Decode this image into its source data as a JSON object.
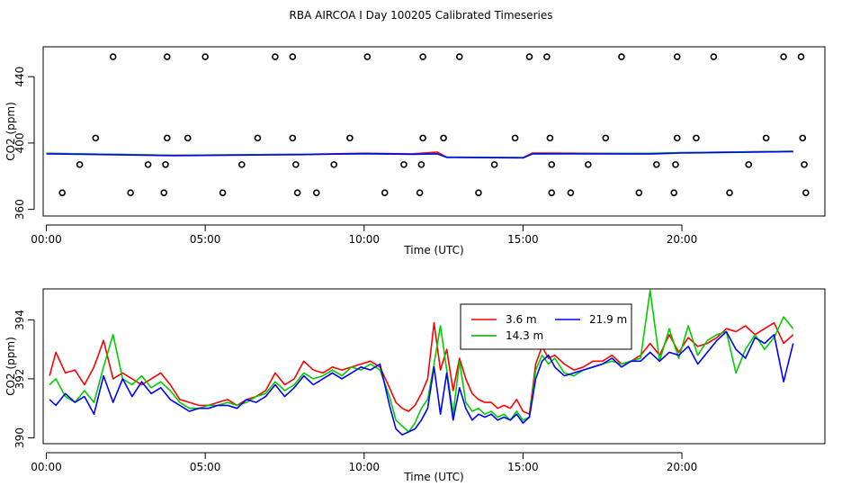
{
  "title": "RBA AIRCOA I  Day 100205  Calibrated Timeseries",
  "chart_data": [
    {
      "type": "scatter",
      "xlabel": "Time (UTC)",
      "ylabel": "CO2 (ppm)",
      "xlim": [
        -0.1,
        24.5
      ],
      "ylim": [
        356,
        458
      ],
      "x_ticks": [
        0,
        5,
        10,
        15,
        20
      ],
      "x_tick_labels": [
        "00:00",
        "05:00",
        "10:00",
        "15:00",
        "20:00"
      ],
      "y_ticks": [
        360,
        400,
        440
      ],
      "y_tick_labels": [
        "360",
        "400",
        "440"
      ],
      "grid": false,
      "series": [
        {
          "color": "#000000",
          "marker": "open-circle",
          "points": [
            [
              2.1,
              452
            ],
            [
              3.8,
              452
            ],
            [
              5.0,
              452
            ],
            [
              7.2,
              452
            ],
            [
              7.75,
              452
            ],
            [
              10.1,
              452
            ],
            [
              11.85,
              452
            ],
            [
              13.0,
              452
            ],
            [
              15.2,
              452
            ],
            [
              15.75,
              452
            ],
            [
              18.1,
              452
            ],
            [
              19.85,
              452
            ],
            [
              21.0,
              452
            ],
            [
              23.2,
              452
            ],
            [
              23.75,
              452
            ],
            [
              1.55,
              403
            ],
            [
              3.8,
              403
            ],
            [
              4.45,
              403
            ],
            [
              6.65,
              403
            ],
            [
              7.75,
              403
            ],
            [
              9.55,
              403
            ],
            [
              11.85,
              403
            ],
            [
              12.5,
              403
            ],
            [
              14.75,
              403
            ],
            [
              15.85,
              403
            ],
            [
              17.6,
              403
            ],
            [
              19.85,
              403
            ],
            [
              20.45,
              403
            ],
            [
              22.65,
              403
            ],
            [
              23.8,
              403
            ],
            [
              1.05,
              387
            ],
            [
              3.2,
              387
            ],
            [
              3.75,
              387
            ],
            [
              6.15,
              387
            ],
            [
              7.85,
              387
            ],
            [
              9.05,
              387
            ],
            [
              11.25,
              387
            ],
            [
              11.8,
              387
            ],
            [
              14.1,
              387
            ],
            [
              15.9,
              387
            ],
            [
              17.05,
              387
            ],
            [
              19.2,
              387
            ],
            [
              19.8,
              387
            ],
            [
              22.1,
              387
            ],
            [
              23.85,
              387
            ],
            [
              0.5,
              370
            ],
            [
              2.65,
              370
            ],
            [
              3.7,
              370
            ],
            [
              5.55,
              370
            ],
            [
              7.9,
              370
            ],
            [
              8.5,
              370
            ],
            [
              10.65,
              370
            ],
            [
              11.75,
              370
            ],
            [
              13.6,
              370
            ],
            [
              15.9,
              370
            ],
            [
              16.5,
              370
            ],
            [
              18.65,
              370
            ],
            [
              19.75,
              370
            ],
            [
              21.5,
              370
            ],
            [
              23.9,
              370
            ]
          ]
        },
        {
          "name": "3.6 m",
          "color": "#ff0000",
          "x": [
            0,
            4,
            8,
            10,
            11.5,
            12.3,
            12.6,
            15,
            15.3,
            19,
            20,
            23.5
          ],
          "y": [
            393.8,
            392.6,
            393.2,
            393.8,
            393.5,
            394.5,
            391.5,
            391.2,
            394,
            393.6,
            394.2,
            395
          ]
        },
        {
          "name": "14.3 m",
          "color": "#00cc00",
          "x": [
            0,
            4,
            8,
            10,
            11.5,
            12.3,
            12.6,
            15,
            15.3,
            19,
            20,
            23.5
          ],
          "y": [
            393.8,
            392.6,
            393.2,
            393.5,
            393.3,
            393.5,
            391.5,
            391.2,
            393.5,
            393.8,
            394.2,
            395
          ]
        },
        {
          "name": "21.9 m",
          "color": "#0000ff",
          "x": [
            0,
            4,
            8,
            10,
            11.5,
            12.3,
            12.6,
            15,
            15.3,
            19,
            20,
            23.5
          ],
          "y": [
            393.5,
            392.4,
            393.0,
            393.6,
            393.2,
            393.5,
            391.3,
            391.0,
            393.5,
            393.4,
            394.0,
            394.8
          ]
        }
      ]
    },
    {
      "type": "line",
      "xlabel": "Time (UTC)",
      "ylabel": "CO2 (ppm)",
      "xlim": [
        -0.1,
        24.5
      ],
      "ylim": [
        389.8,
        395.05
      ],
      "x_ticks": [
        0,
        5,
        10,
        15,
        20
      ],
      "x_tick_labels": [
        "00:00",
        "05:00",
        "10:00",
        "15:00",
        "20:00"
      ],
      "y_ticks": [
        390,
        392,
        394
      ],
      "y_tick_labels": [
        "390",
        "392",
        "394"
      ],
      "grid": false,
      "legend_placement": "top-center",
      "legend": [
        {
          "label": "3.6 m",
          "color": "#ff0000"
        },
        {
          "label": "21.9 m",
          "color": "#0000ff"
        },
        {
          "label": "14.3 m",
          "color": "#00aa00"
        }
      ],
      "series": [
        {
          "name": "3.6 m",
          "color": "#ff0000",
          "x": [
            0.1,
            0.3,
            0.6,
            0.9,
            1.2,
            1.5,
            1.8,
            2.1,
            2.4,
            2.7,
            3.0,
            3.3,
            3.6,
            3.9,
            4.2,
            4.5,
            4.8,
            5.1,
            5.4,
            5.7,
            6.0,
            6.3,
            6.6,
            6.9,
            7.2,
            7.5,
            7.8,
            8.1,
            8.4,
            8.7,
            9.0,
            9.3,
            9.6,
            9.9,
            10.2,
            10.5,
            10.8,
            11.0,
            11.2,
            11.4,
            11.6,
            11.8,
            12.0,
            12.2,
            12.4,
            12.6,
            12.8,
            13.0,
            13.2,
            13.4,
            13.6,
            13.8,
            14.0,
            14.2,
            14.4,
            14.6,
            14.8,
            15.0,
            15.2,
            15.4,
            15.6,
            15.8,
            16.0,
            16.3,
            16.6,
            16.9,
            17.2,
            17.5,
            17.8,
            18.1,
            18.4,
            18.7,
            19.0,
            19.3,
            19.6,
            19.9,
            20.2,
            20.5,
            20.8,
            21.1,
            21.4,
            21.7,
            22.0,
            22.3,
            22.6,
            22.9,
            23.2,
            23.5
          ],
          "y": [
            392.1,
            392.9,
            392.2,
            392.3,
            391.8,
            392.4,
            393.3,
            392.0,
            392.2,
            392.0,
            391.8,
            392.0,
            392.2,
            391.8,
            391.3,
            391.2,
            391.1,
            391.1,
            391.2,
            391.3,
            391.1,
            391.3,
            391.4,
            391.6,
            392.2,
            391.8,
            392.0,
            392.6,
            392.3,
            392.2,
            392.4,
            392.3,
            392.4,
            392.5,
            392.6,
            392.4,
            391.7,
            391.2,
            391.0,
            390.9,
            391.1,
            391.5,
            392.0,
            393.9,
            392.3,
            393.0,
            391.6,
            392.7,
            392.0,
            391.5,
            391.3,
            391.2,
            391.2,
            391.0,
            391.1,
            391.0,
            391.3,
            390.9,
            390.8,
            392.5,
            393.1,
            392.7,
            392.8,
            392.5,
            392.3,
            392.4,
            392.6,
            392.6,
            392.8,
            392.5,
            392.6,
            392.8,
            393.2,
            392.8,
            393.5,
            392.9,
            393.4,
            393.1,
            393.2,
            393.4,
            393.7,
            393.6,
            393.8,
            393.5,
            393.7,
            393.9,
            393.2,
            393.5
          ]
        },
        {
          "name": "14.3 m",
          "color": "#00cc00",
          "x": [
            0.1,
            0.3,
            0.6,
            0.9,
            1.2,
            1.5,
            1.8,
            2.1,
            2.4,
            2.7,
            3.0,
            3.3,
            3.6,
            3.9,
            4.2,
            4.5,
            4.8,
            5.1,
            5.4,
            5.7,
            6.0,
            6.3,
            6.6,
            6.9,
            7.2,
            7.5,
            7.8,
            8.1,
            8.4,
            8.7,
            9.0,
            9.3,
            9.6,
            9.9,
            10.2,
            10.5,
            10.8,
            11.0,
            11.2,
            11.4,
            11.6,
            11.8,
            12.0,
            12.2,
            12.4,
            12.6,
            12.8,
            13.0,
            13.2,
            13.4,
            13.6,
            13.8,
            14.0,
            14.2,
            14.4,
            14.6,
            14.8,
            15.0,
            15.2,
            15.4,
            15.6,
            15.8,
            16.0,
            16.3,
            16.6,
            16.9,
            17.2,
            17.5,
            17.8,
            18.1,
            18.4,
            18.7,
            19.0,
            19.3,
            19.6,
            19.9,
            20.2,
            20.5,
            20.8,
            21.1,
            21.4,
            21.7,
            22.0,
            22.3,
            22.6,
            22.9,
            23.2,
            23.5
          ],
          "y": [
            391.8,
            392.0,
            391.4,
            391.2,
            391.6,
            391.2,
            392.4,
            393.5,
            392.0,
            391.8,
            392.1,
            391.7,
            391.9,
            391.6,
            391.2,
            391.0,
            391.0,
            391.1,
            391.1,
            391.2,
            391.1,
            391.2,
            391.4,
            391.5,
            391.9,
            391.6,
            391.8,
            392.2,
            392.0,
            392.1,
            392.3,
            392.1,
            392.4,
            392.3,
            392.5,
            392.3,
            391.4,
            390.6,
            390.4,
            390.2,
            390.5,
            391.0,
            391.3,
            392.5,
            393.8,
            392.3,
            390.8,
            392.6,
            391.2,
            390.9,
            391.0,
            390.8,
            390.9,
            390.7,
            390.8,
            390.6,
            390.9,
            390.6,
            390.7,
            392.3,
            392.8,
            392.5,
            392.7,
            392.2,
            392.1,
            392.3,
            392.4,
            392.5,
            392.6,
            392.5,
            392.6,
            392.7,
            395.0,
            392.6,
            393.7,
            392.7,
            393.8,
            392.8,
            393.3,
            393.5,
            393.6,
            392.2,
            393.0,
            393.5,
            393.0,
            393.4,
            394.1,
            393.7
          ]
        },
        {
          "name": "21.9 m",
          "color": "#0000ff",
          "x": [
            0.1,
            0.3,
            0.6,
            0.9,
            1.2,
            1.5,
            1.8,
            2.1,
            2.4,
            2.7,
            3.0,
            3.3,
            3.6,
            3.9,
            4.2,
            4.5,
            4.8,
            5.1,
            5.4,
            5.7,
            6.0,
            6.3,
            6.6,
            6.9,
            7.2,
            7.5,
            7.8,
            8.1,
            8.4,
            8.7,
            9.0,
            9.3,
            9.6,
            9.9,
            10.2,
            10.5,
            10.8,
            11.0,
            11.2,
            11.4,
            11.6,
            11.8,
            12.0,
            12.2,
            12.4,
            12.6,
            12.8,
            13.0,
            13.2,
            13.4,
            13.6,
            13.8,
            14.0,
            14.2,
            14.4,
            14.6,
            14.8,
            15.0,
            15.2,
            15.4,
            15.6,
            15.8,
            16.0,
            16.3,
            16.6,
            16.9,
            17.2,
            17.5,
            17.8,
            18.1,
            18.4,
            18.7,
            19.0,
            19.3,
            19.6,
            19.9,
            20.2,
            20.5,
            20.8,
            21.1,
            21.4,
            21.7,
            22.0,
            22.3,
            22.6,
            22.9,
            23.2,
            23.5
          ],
          "y": [
            391.3,
            391.1,
            391.5,
            391.2,
            391.4,
            390.8,
            392.1,
            391.2,
            392.0,
            391.4,
            391.9,
            391.5,
            391.7,
            391.3,
            391.1,
            390.9,
            391.0,
            391.0,
            391.1,
            391.1,
            391.0,
            391.3,
            391.2,
            391.4,
            391.8,
            391.4,
            391.7,
            392.1,
            391.8,
            392.0,
            392.2,
            392.0,
            392.2,
            392.4,
            392.3,
            392.5,
            391.1,
            390.3,
            390.1,
            390.2,
            390.3,
            390.6,
            391.0,
            392.4,
            390.8,
            392.2,
            390.6,
            391.7,
            391.0,
            390.6,
            390.8,
            390.7,
            390.8,
            390.6,
            390.7,
            390.6,
            390.8,
            390.5,
            390.7,
            392.0,
            392.6,
            392.8,
            392.4,
            392.1,
            392.2,
            392.3,
            392.4,
            392.5,
            392.7,
            392.4,
            392.6,
            392.6,
            392.9,
            392.6,
            392.9,
            392.8,
            393.1,
            392.5,
            392.9,
            393.3,
            393.6,
            393.0,
            392.7,
            393.4,
            393.2,
            393.5,
            391.9,
            393.2
          ]
        }
      ]
    }
  ]
}
